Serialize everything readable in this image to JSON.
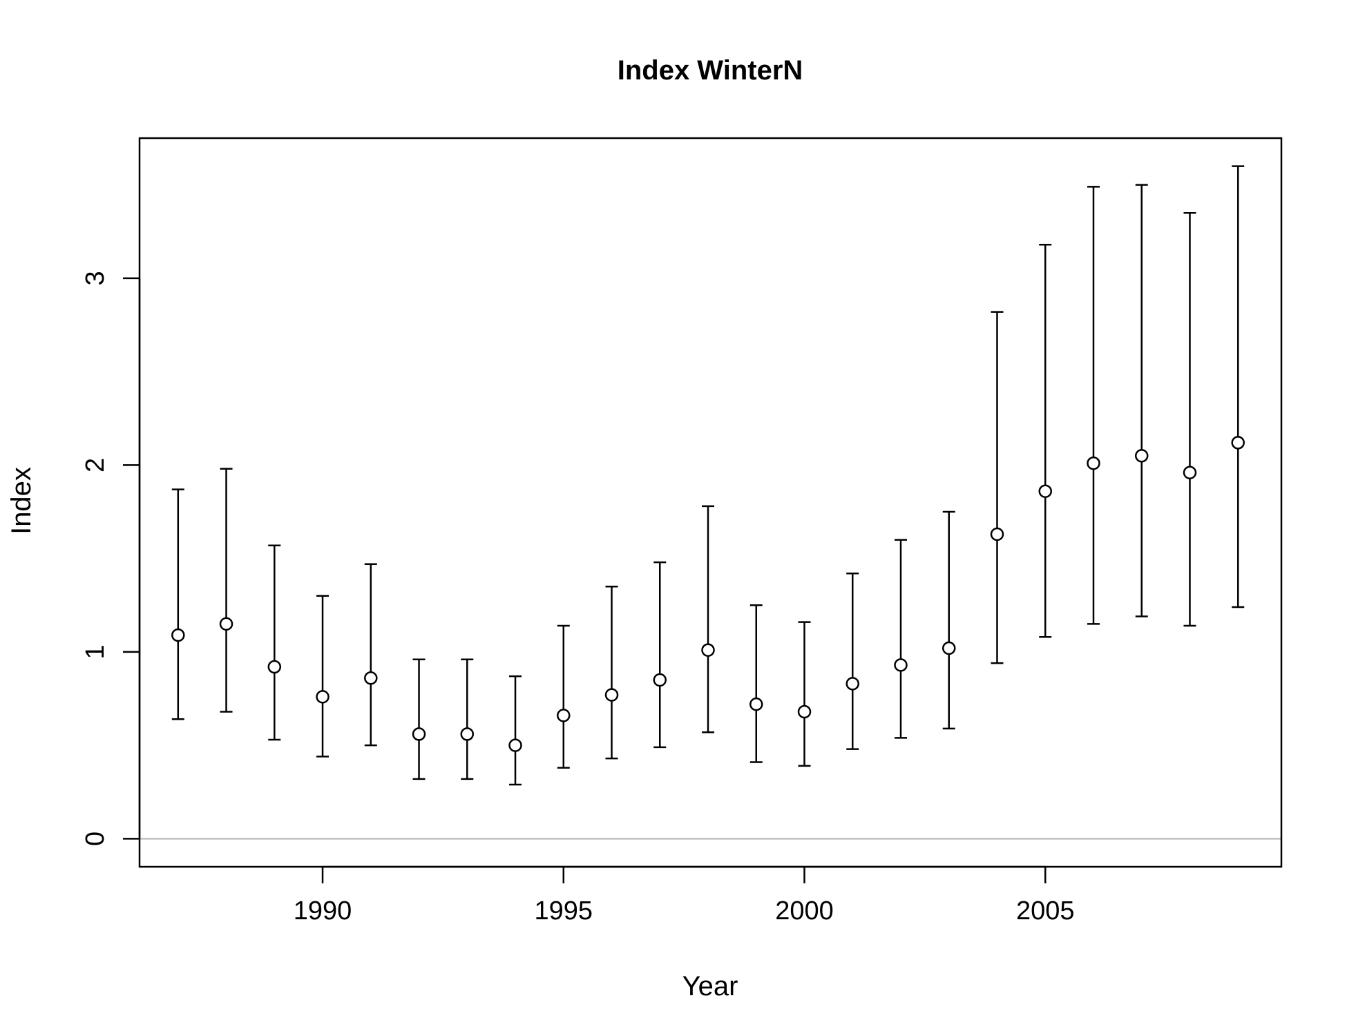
{
  "chart_data": {
    "type": "scatter",
    "title": "Index WinterN",
    "xlabel": "Year",
    "ylabel": "Index",
    "xlim": [
      1986.2,
      2009.9
    ],
    "ylim": [
      -0.15,
      3.75
    ],
    "xticks": [
      1990,
      1995,
      2000,
      2005
    ],
    "yticks": [
      0,
      1,
      2,
      3
    ],
    "reference_line": {
      "y": 0,
      "color": "#bebebe"
    },
    "series": [
      {
        "x": [
          1987,
          1988,
          1989,
          1990,
          1991,
          1992,
          1993,
          1994,
          1995,
          1996,
          1997,
          1998,
          1999,
          2000,
          2001,
          2002,
          2003,
          2004,
          2005,
          2006,
          2007,
          2008,
          2009
        ],
        "y": [
          1.09,
          1.15,
          0.92,
          0.76,
          0.86,
          0.56,
          0.56,
          0.5,
          0.66,
          0.77,
          0.85,
          1.01,
          0.72,
          0.68,
          0.83,
          0.93,
          1.02,
          1.63,
          1.86,
          2.01,
          2.05,
          1.96,
          2.12
        ],
        "lower": [
          0.64,
          0.68,
          0.53,
          0.44,
          0.5,
          0.32,
          0.32,
          0.29,
          0.38,
          0.43,
          0.49,
          0.57,
          0.41,
          0.39,
          0.48,
          0.54,
          0.59,
          0.94,
          1.08,
          1.15,
          1.19,
          1.14,
          1.24
        ],
        "upper": [
          1.87,
          1.98,
          1.57,
          1.3,
          1.47,
          0.96,
          0.96,
          0.87,
          1.14,
          1.35,
          1.48,
          1.78,
          1.25,
          1.16,
          1.42,
          1.6,
          1.75,
          2.82,
          3.18,
          3.49,
          3.5,
          3.35,
          3.6
        ]
      }
    ],
    "grid": false,
    "colors": {
      "points": "#000000",
      "errorbars": "#000000",
      "reference_line": "#bebebe"
    }
  }
}
